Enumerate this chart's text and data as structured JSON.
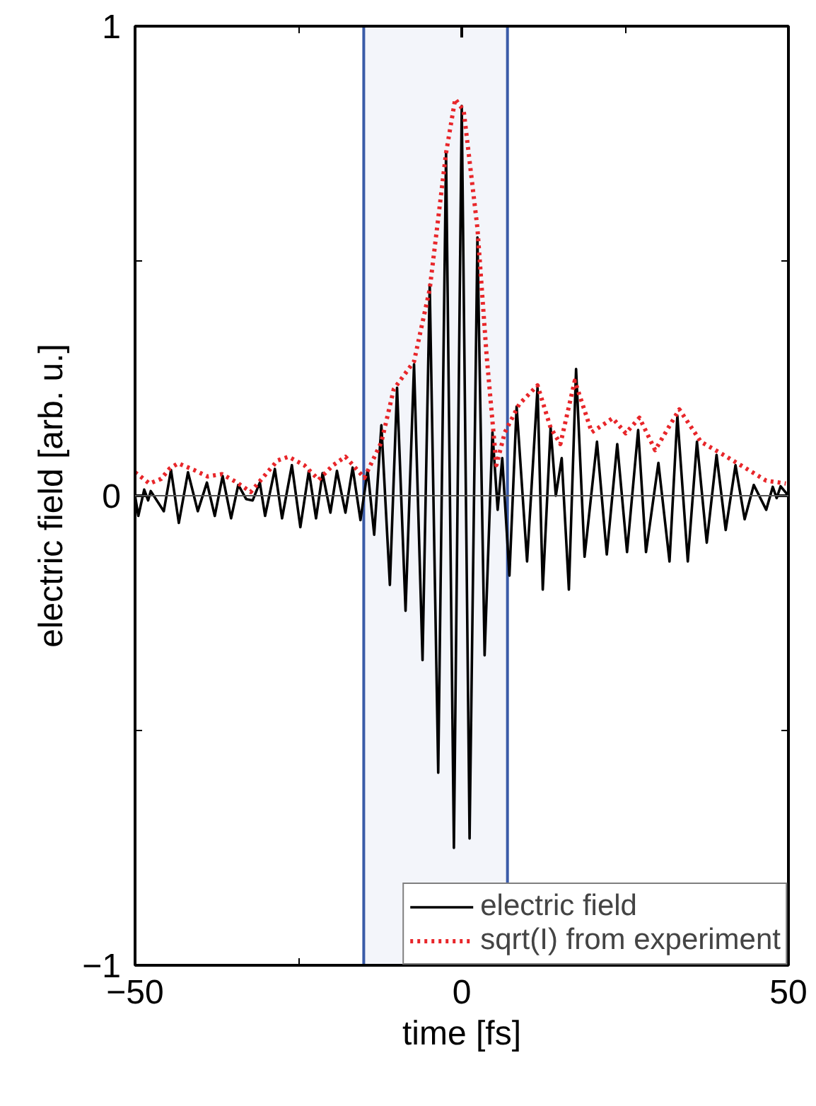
{
  "chart_data": {
    "type": "line",
    "xlabel": "time [fs]",
    "ylabel": "electric field [arb. u.]",
    "xlim": [
      -50,
      50
    ],
    "ylim": [
      -1,
      1
    ],
    "xticks": [
      -50,
      0,
      50
    ],
    "yticks": [
      -1,
      0,
      1
    ],
    "grid": false,
    "legend": "bottom right",
    "ref_lines": [
      {
        "axis": "y",
        "value": 0,
        "color": "#555555"
      }
    ],
    "bands": [
      {
        "axis": "x",
        "from": -15,
        "to": 7,
        "color": "#3a5ba8"
      }
    ],
    "series": [
      {
        "name": "electric field",
        "color": "#000000",
        "line_style": "solid",
        "x": [
          -50,
          -49.5,
          -48.6,
          -48,
          -47.6,
          -45.6,
          -44.5,
          -43.3,
          -41.9,
          -40.4,
          -39,
          -37.8,
          -36.6,
          -35.3,
          -34.2,
          -33,
          -32,
          -30.9,
          -30.1,
          -28.6,
          -27.5,
          -26,
          -24.7,
          -23.4,
          -22.3,
          -21.3,
          -20.1,
          -19.1,
          -17.8,
          -16.7,
          -15.5,
          -14.4,
          -13.4,
          -12.3,
          -11.0,
          -9.9,
          -8.6,
          -7.3,
          -6.0,
          -4.9,
          -3.6,
          -2.4,
          -1.2,
          0,
          1.2,
          2.4,
          3.5,
          4.7,
          5.5,
          6.2,
          7.3,
          8.4,
          10.0,
          11.6,
          12.4,
          13.6,
          14.4,
          15.3,
          16.4,
          17.5,
          18.8,
          20.7,
          22.2,
          23.8,
          25.3,
          27.0,
          28.2,
          30.1,
          31.8,
          33.0,
          34.6,
          36.0,
          37.5,
          39.0,
          40.4,
          41.9,
          43.3,
          44.7,
          46.6,
          47.6,
          48.2,
          48.8,
          50
        ],
        "values": [
          0,
          -0.043,
          0.013,
          -0.01,
          0.01,
          -0.033,
          0.055,
          -0.058,
          0.05,
          -0.033,
          0.028,
          -0.043,
          0.042,
          -0.048,
          0.023,
          -0.007,
          -0.01,
          0.028,
          -0.043,
          0.057,
          -0.048,
          0.065,
          -0.067,
          0.053,
          -0.048,
          0.048,
          -0.036,
          0.053,
          -0.036,
          0.06,
          -0.052,
          0.055,
          -0.083,
          0.15,
          -0.19,
          0.23,
          -0.245,
          0.28,
          -0.35,
          0.45,
          -0.59,
          0.73,
          -0.75,
          0.83,
          -0.73,
          0.55,
          -0.34,
          0.135,
          -0.03,
          0.08,
          -0.17,
          0.19,
          -0.14,
          0.23,
          -0.2,
          0.145,
          0,
          0.08,
          -0.2,
          0.27,
          -0.13,
          0.115,
          -0.125,
          0.11,
          -0.12,
          0.14,
          -0.12,
          0.07,
          -0.14,
          0.17,
          -0.14,
          0.115,
          -0.1,
          0.087,
          -0.073,
          0.065,
          -0.05,
          0.023,
          -0.03,
          0.019,
          -0.005,
          0.02,
          0
        ]
      },
      {
        "name": "sqrt(I) from experiment",
        "color": "#e8262a",
        "line_style": "dotted",
        "x": [
          -50,
          -47.8,
          -46,
          -44.7,
          -43.4,
          -41,
          -38.9,
          -36.7,
          -34.5,
          -32.3,
          -30.1,
          -28.2,
          -26.5,
          -24.1,
          -21.9,
          -19.7,
          -17.8,
          -16,
          -14.9,
          -12.3,
          -10.4,
          -7.3,
          -4.9,
          -2.4,
          -1.0,
          0.3,
          2.4,
          3.8,
          5.3,
          6.6,
          8.8,
          11.6,
          13.6,
          15.1,
          17.3,
          19.9,
          23.1,
          25.1,
          27.2,
          29.6,
          33.3,
          36.6,
          40.3,
          43.3,
          46.6,
          49.6
        ],
        "values": [
          0.05,
          0.026,
          0.036,
          0.058,
          0.069,
          0.055,
          0.041,
          0.046,
          0.029,
          0.008,
          0.044,
          0.075,
          0.083,
          0.065,
          0.034,
          0.065,
          0.083,
          0.055,
          0.038,
          0.114,
          0.227,
          0.286,
          0.44,
          0.73,
          0.845,
          0.82,
          0.57,
          0.3,
          0.065,
          0.135,
          0.195,
          0.235,
          0.145,
          0.11,
          0.245,
          0.135,
          0.165,
          0.133,
          0.166,
          0.097,
          0.184,
          0.115,
          0.085,
          0.06,
          0.032,
          0.026
        ]
      }
    ]
  }
}
